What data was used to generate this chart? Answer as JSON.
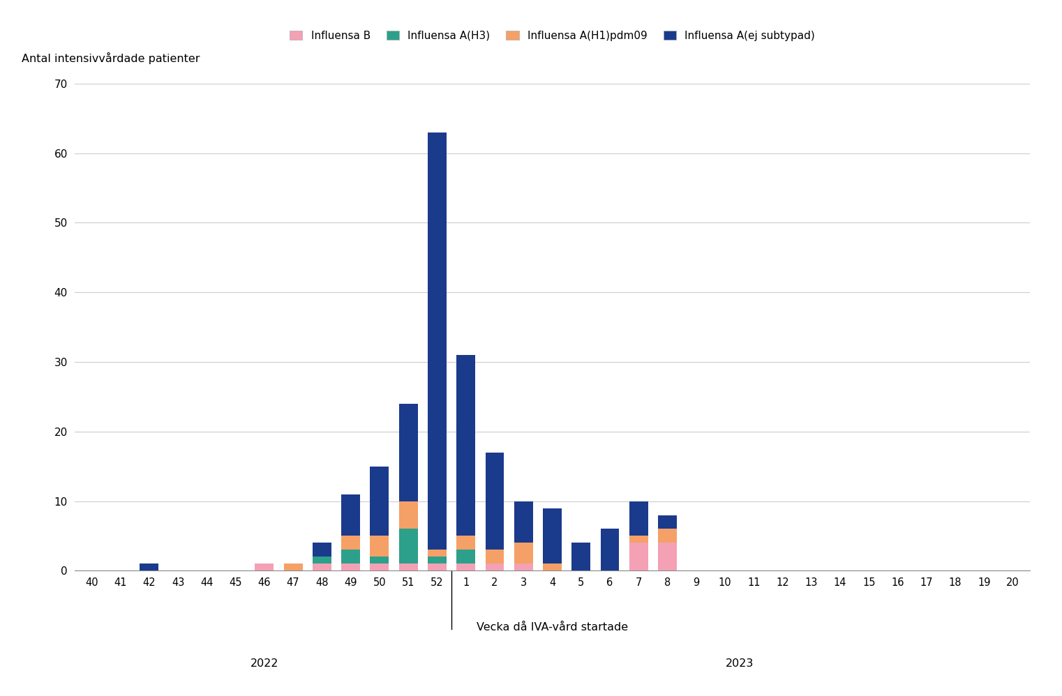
{
  "weeks": [
    "40",
    "41",
    "42",
    "43",
    "44",
    "45",
    "46",
    "47",
    "48",
    "49",
    "50",
    "51",
    "52",
    "1",
    "2",
    "3",
    "4",
    "5",
    "6",
    "7",
    "8",
    "9",
    "10",
    "11",
    "12",
    "13",
    "14",
    "15",
    "16",
    "17",
    "18",
    "19",
    "20"
  ],
  "influensa_B": [
    0,
    0,
    0,
    0,
    0,
    0,
    1,
    0,
    1,
    1,
    1,
    1,
    1,
    1,
    1,
    1,
    0,
    0,
    0,
    4,
    4,
    0,
    0,
    0,
    0,
    0,
    0,
    0,
    0,
    0,
    0,
    0,
    0
  ],
  "influensa_A_H3": [
    0,
    0,
    0,
    0,
    0,
    0,
    0,
    0,
    1,
    2,
    1,
    5,
    1,
    2,
    0,
    0,
    0,
    0,
    0,
    0,
    0,
    0,
    0,
    0,
    0,
    0,
    0,
    0,
    0,
    0,
    0,
    0,
    0
  ],
  "influensa_A_H1pdm09": [
    0,
    0,
    0,
    0,
    0,
    0,
    0,
    1,
    0,
    2,
    3,
    4,
    1,
    2,
    2,
    3,
    1,
    0,
    0,
    1,
    2,
    0,
    0,
    0,
    0,
    0,
    0,
    0,
    0,
    0,
    0,
    0,
    0
  ],
  "influensa_A_ej": [
    0,
    0,
    1,
    0,
    0,
    0,
    0,
    0,
    2,
    6,
    10,
    14,
    60,
    26,
    14,
    6,
    8,
    4,
    6,
    5,
    2,
    0,
    0,
    0,
    0,
    0,
    0,
    0,
    0,
    0,
    0,
    0,
    0
  ],
  "color_B": "#f4a0b5",
  "color_H3": "#2ca08a",
  "color_H1": "#f5a067",
  "color_ej": "#1a3a8c",
  "label_B": "Influensa B",
  "label_H3": "Influensa A(H3)",
  "label_H1": "Influensa A(H1)pdm09",
  "label_ej": "Influensa A(ej subtypad)",
  "ylabel": "Antal intensivvårdade patienter",
  "xlabel": "Vecka då IVA-vård startade",
  "ylim": [
    0,
    70
  ],
  "yticks": [
    0,
    10,
    20,
    30,
    40,
    50,
    60,
    70
  ],
  "year2022_label": "2022",
  "year2023_label": "2023",
  "bg_color": "#ffffff",
  "grid_color": "#cccccc",
  "separator_week_index": 12
}
